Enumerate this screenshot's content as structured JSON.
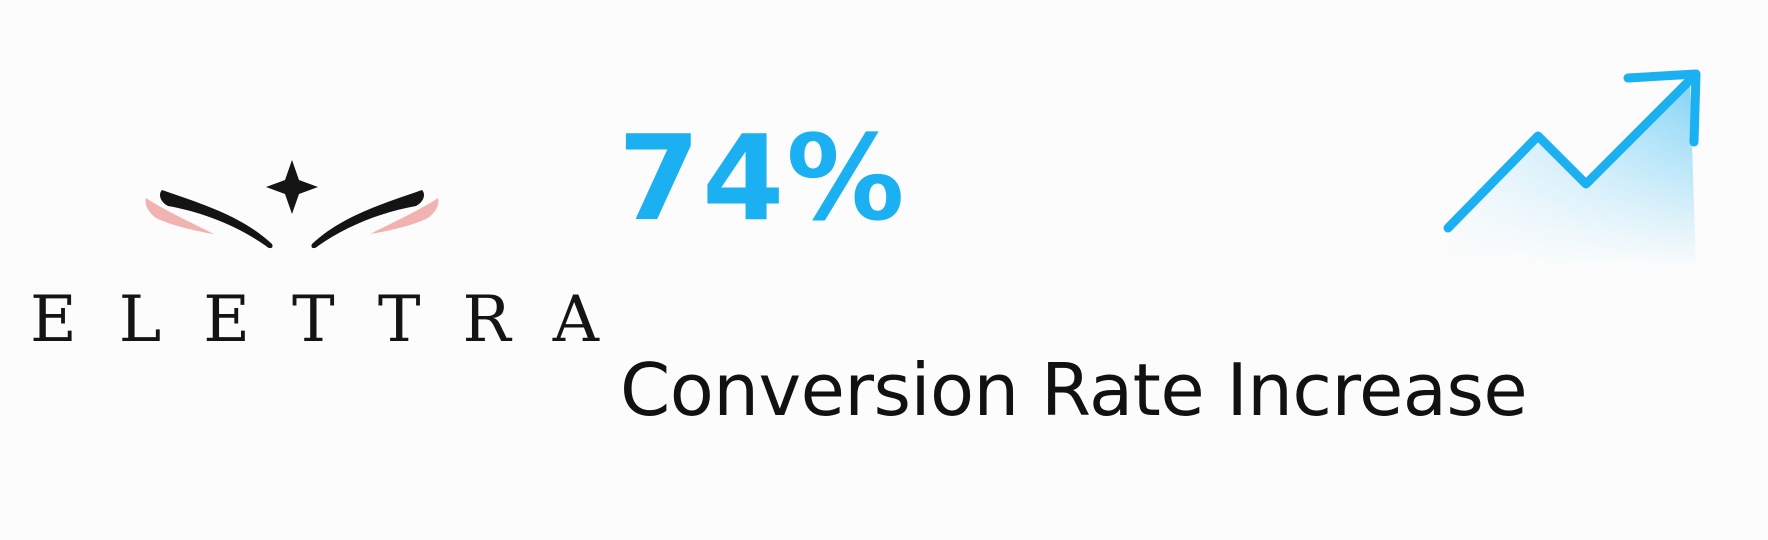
{
  "brand": {
    "name": "ELETTRA"
  },
  "stat": {
    "value": "74%",
    "label": "Conversion Rate Increase"
  },
  "icons": {
    "trend": "trending-up-icon",
    "logo_mark": "wings-star-icon"
  },
  "colors": {
    "accent": "#1ab0f2",
    "text": "#111111",
    "logo_black": "#141414",
    "logo_pink": "#f1b3b0",
    "background": "#fcfcfc"
  }
}
